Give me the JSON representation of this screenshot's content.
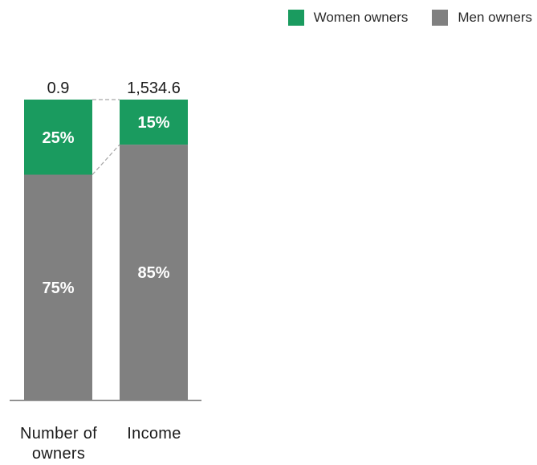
{
  "chart_data": {
    "type": "bar",
    "stacked": true,
    "normalized": true,
    "categories": [
      "Number of owners",
      "Income"
    ],
    "totals": [
      "0.9",
      "1,534.6"
    ],
    "series": [
      {
        "name": "Women owners",
        "color": "#1a9b5f",
        "values": [
          25,
          15
        ],
        "labels": [
          "25%",
          "15%"
        ]
      },
      {
        "name": "Men owners",
        "color": "#808080",
        "values": [
          75,
          85
        ],
        "labels": [
          "75%",
          "85%"
        ]
      }
    ],
    "ylim": [
      0,
      100
    ],
    "legend_position": "top-right",
    "grid": false
  }
}
